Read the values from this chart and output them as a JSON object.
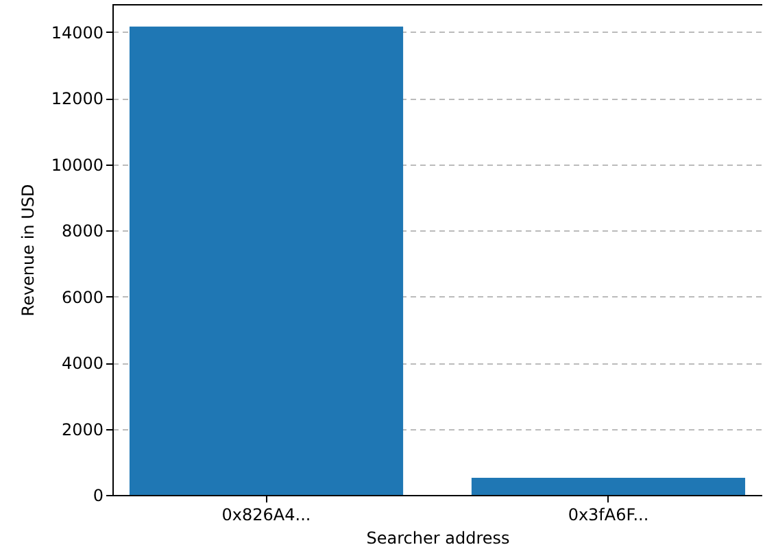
{
  "chart_data": {
    "type": "bar",
    "xlabel": "Searcher address",
    "ylabel": "Revenue in USD",
    "categories": [
      "0x826A4...",
      "0x3fA6F..."
    ],
    "values": [
      14170,
      520
    ],
    "color": "#1f77b4",
    "ylim": [
      0,
      14850
    ],
    "yticks": [
      0,
      2000,
      4000,
      6000,
      8000,
      10000,
      12000,
      14000
    ],
    "grid": "y"
  }
}
